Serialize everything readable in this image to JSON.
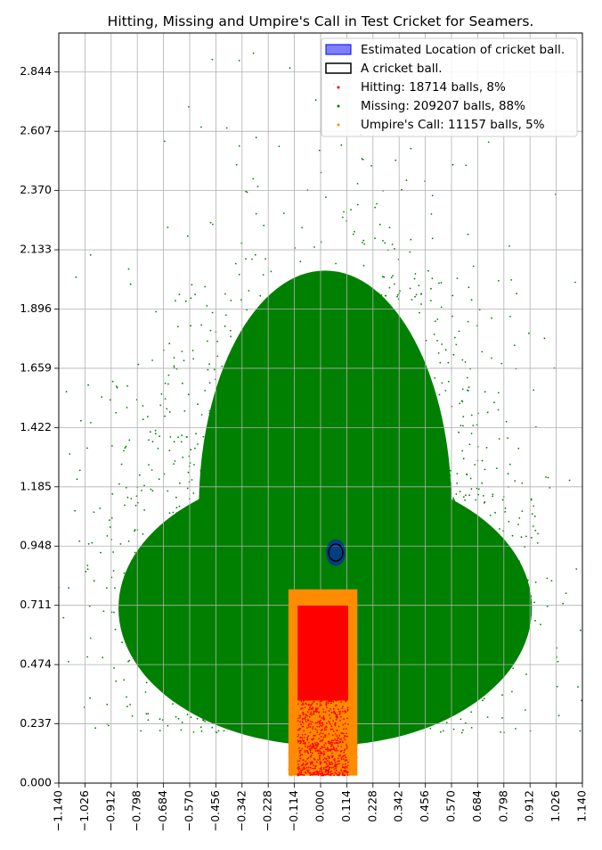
{
  "chart_data": {
    "type": "scatter",
    "title": "Hitting, Missing and Umpire's Call in Test Cricket for Seamers.",
    "xlabel": "",
    "ylabel": "",
    "xlim": [
      -1.14,
      1.14
    ],
    "ylim": [
      0.0,
      3.0
    ],
    "x_ticks": [
      "−1.140",
      "−1.026",
      "−0.912",
      "−0.798",
      "−0.684",
      "−0.570",
      "−0.456",
      "−0.342",
      "−0.228",
      "−0.114",
      "0.000",
      "0.114",
      "0.228",
      "0.342",
      "0.456",
      "0.570",
      "0.684",
      "0.798",
      "0.912",
      "1.026",
      "1.140"
    ],
    "x_tick_values": [
      -1.14,
      -1.026,
      -0.912,
      -0.798,
      -0.684,
      -0.57,
      -0.456,
      -0.342,
      -0.228,
      -0.114,
      0.0,
      0.114,
      0.228,
      0.342,
      0.456,
      0.57,
      0.684,
      0.798,
      0.912,
      1.026,
      1.14
    ],
    "y_ticks": [
      "0.000",
      "0.237",
      "0.474",
      "0.711",
      "0.948",
      "1.185",
      "1.422",
      "1.659",
      "1.896",
      "2.133",
      "2.370",
      "2.607",
      "2.844"
    ],
    "y_tick_values": [
      0.0,
      0.237,
      0.474,
      0.711,
      0.948,
      1.185,
      1.422,
      1.659,
      1.896,
      2.133,
      2.37,
      2.607,
      2.844
    ],
    "grid": true,
    "legend_position": "top-right",
    "legend": [
      "Estimated Location of cricket ball.",
      "A cricket ball.",
      "Hitting: 18714 balls, 8%",
      "Missing: 209207 balls, 88%",
      "Umpire's Call: 11157 balls, 5%"
    ],
    "series": [
      {
        "name": "Hitting: 18714 balls, 8%",
        "count": 18714,
        "percent": 8,
        "color": "#ff0000"
      },
      {
        "name": "Missing: 209207 balls, 88%",
        "count": 209207,
        "percent": 88,
        "color": "#008000"
      },
      {
        "name": "Umpire's Call: 11157 balls, 5%",
        "count": 11157,
        "percent": 5,
        "color": "#ff8c00"
      }
    ],
    "regions": {
      "umpires_call_zone": {
        "x": [
          -0.14,
          0.16
        ],
        "y": [
          0.03,
          0.775
        ],
        "color": "#ff8c00"
      },
      "hitting_zone": {
        "x": [
          -0.1,
          0.12
        ],
        "y": [
          0.03,
          0.71
        ],
        "color": "#ff0000"
      }
    },
    "estimated_location": {
      "x": 0.066,
      "y": 0.922,
      "color": "#0000ff"
    },
    "cricket_ball": {
      "x": 0.066,
      "y": 0.922
    }
  }
}
